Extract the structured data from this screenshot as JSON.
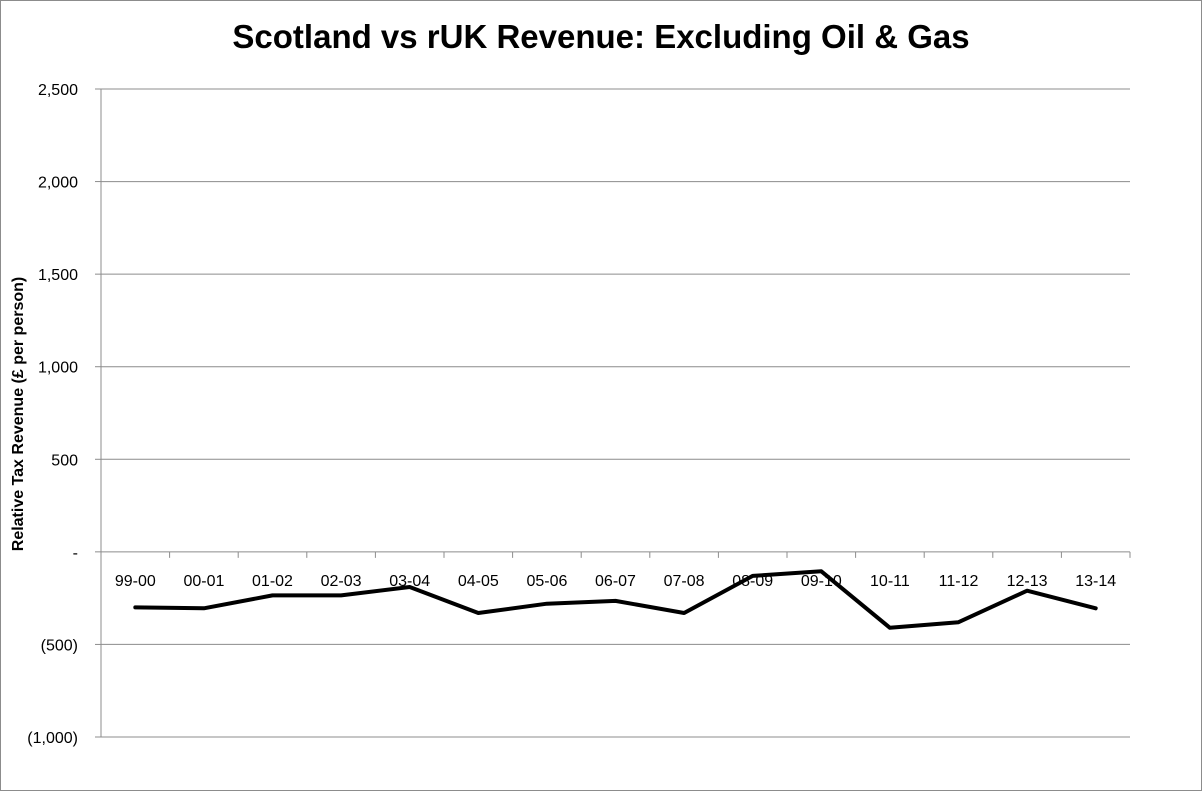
{
  "chart_data": {
    "type": "line",
    "title": "Scotland vs rUK Revenue: Excluding Oil & Gas",
    "xlabel": "",
    "ylabel": "Relative Tax Revenue (£ per person)",
    "categories": [
      "99-00",
      "00-01",
      "01-02",
      "02-03",
      "03-04",
      "04-05",
      "05-06",
      "06-07",
      "07-08",
      "08-09",
      "09-10",
      "10-11",
      "11-12",
      "12-13",
      "13-14"
    ],
    "series": [
      {
        "values": [
          -300,
          -305,
          -235,
          -235,
          -190,
          -330,
          -280,
          -265,
          -330,
          -130,
          -105,
          -410,
          -380,
          -210,
          -305
        ]
      }
    ],
    "ylim": [
      -1000,
      2500
    ],
    "yticks": [
      -1000,
      -500,
      0,
      500,
      1000,
      1500,
      2000,
      2500
    ],
    "ytick_labels": [
      "(1,000)",
      "(500)",
      "-",
      "500",
      "1,000",
      "1,500",
      "2,000",
      "2,500"
    ],
    "grid": true,
    "legend": "none",
    "line_color": "#000000",
    "grid_color": "#8c8c8c"
  }
}
